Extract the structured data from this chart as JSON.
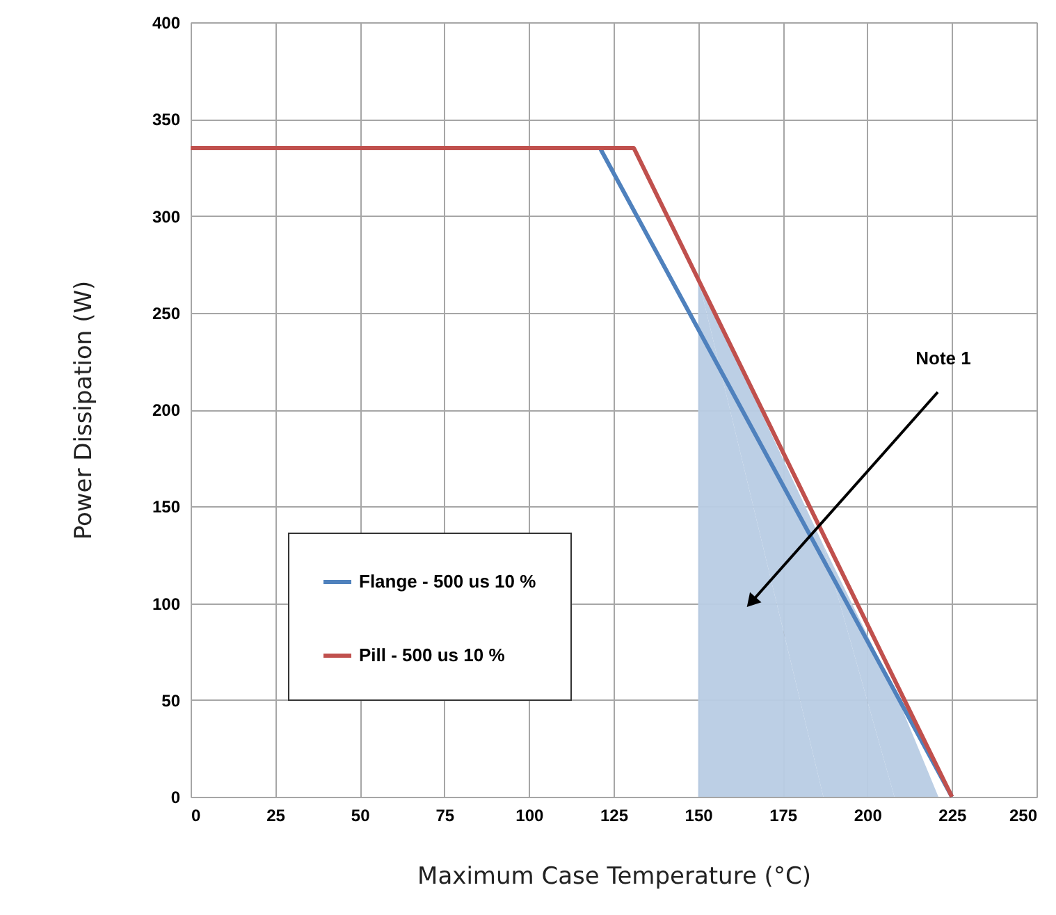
{
  "chart_data": {
    "type": "line",
    "xlabel": "Maximum Case Temperature (°C)",
    "ylabel": "Power Dissipation (W)",
    "xlim": [
      0,
      250
    ],
    "xticks": [
      0,
      25,
      50,
      75,
      100,
      125,
      150,
      175,
      200,
      225,
      250
    ],
    "ylim": [
      0,
      400
    ],
    "yticks": [
      0,
      50,
      100,
      150,
      200,
      250,
      300,
      350,
      400
    ],
    "grid": true,
    "legend": "left",
    "marker": "none",
    "line_style": "solid",
    "series": [
      {
        "type": "area",
        "color": "#b8cce4",
        "x": [
          150,
          187,
          208,
          221
        ],
        "values": [
          268,
          130,
          55,
          0
        ]
      },
      {
        "name": "Flange - 500 us 10 %",
        "color": "#4f81bd",
        "x": [
          0,
          121,
          225
        ],
        "values": [
          335,
          335,
          0
        ]
      },
      {
        "name": "Pill - 500 us 10 %",
        "color": "#c0504d",
        "x": [
          0,
          131,
          225
        ],
        "values": [
          335,
          335,
          0
        ]
      }
    ],
    "annotations": [
      "Note 1"
    ]
  }
}
